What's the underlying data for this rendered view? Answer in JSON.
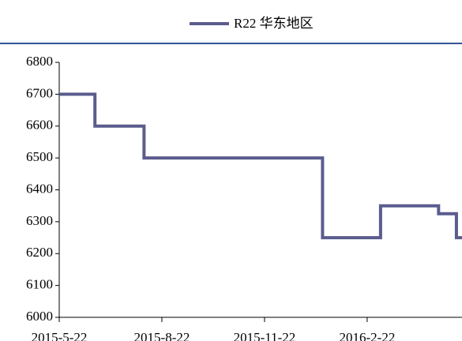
{
  "chart_data": {
    "type": "line",
    "x": [
      "2015-5-22",
      "2015-6-23",
      "2015-6-23",
      "2015-8-6",
      "2015-8-6",
      "2016-1-13",
      "2016-1-13",
      "2016-3-5",
      "2016-3-5",
      "2016-4-26",
      "2016-4-26",
      "2016-5-12",
      "2016-5-12",
      "2016-5-17"
    ],
    "series": [
      {
        "name": "R22 华东地区",
        "color": "#5b5c8e",
        "values": [
          6700,
          6700,
          6600,
          6600,
          6500,
          6500,
          6250,
          6250,
          6350,
          6350,
          6325,
          6325,
          6250,
          6250
        ]
      }
    ],
    "xlim": [
      "2015-5-22",
      "2016-5-17"
    ],
    "xticks": [
      "2015-5-22",
      "2015-8-22",
      "2015-11-22",
      "2016-2-22"
    ],
    "ylim": [
      6000,
      6800
    ],
    "yticks": [
      6000,
      6100,
      6200,
      6300,
      6400,
      6500,
      6600,
      6700,
      6800
    ],
    "legend": "top"
  }
}
